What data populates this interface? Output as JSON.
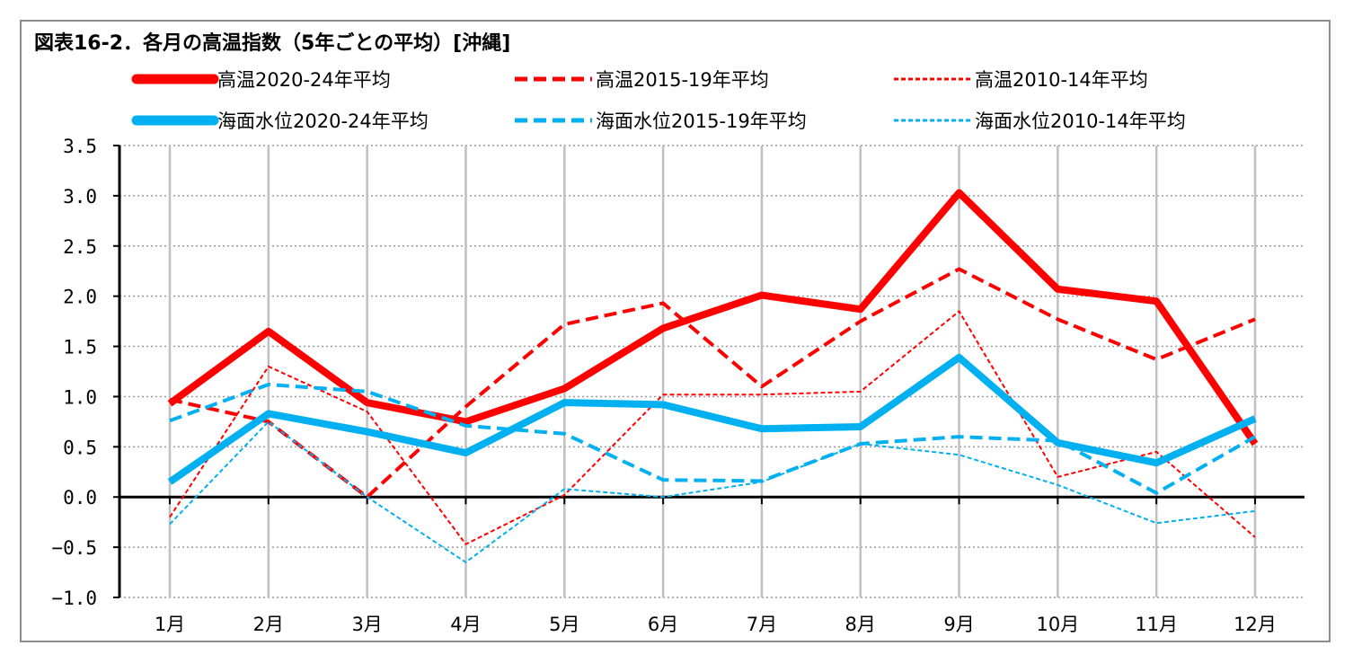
{
  "chart_data": {
    "type": "line",
    "title": "図表16-2．各月の高温指数（5年ごとの平均）[沖縄]",
    "categories": [
      "1月",
      "2月",
      "3月",
      "4月",
      "5月",
      "6月",
      "7月",
      "8月",
      "9月",
      "10月",
      "11月",
      "12月"
    ],
    "ylim": [
      -1.0,
      3.5
    ],
    "yticks": [
      "3.5",
      "3.0",
      "2.5",
      "2.0",
      "1.5",
      "1.0",
      "0.5",
      "0.0",
      "−0.5",
      "−1.0"
    ],
    "grid": true,
    "legend_position": "top",
    "series": [
      {
        "name": "高温2020-24年平均",
        "color": "#ff0000",
        "style": "solid-thick",
        "values": [
          0.93,
          1.65,
          0.94,
          0.75,
          1.08,
          1.68,
          2.01,
          1.87,
          3.03,
          2.07,
          1.95,
          0.53
        ]
      },
      {
        "name": "高温2015-19年平均",
        "color": "#ff0000",
        "style": "dash-medium",
        "values": [
          0.97,
          0.75,
          0.0,
          0.9,
          1.72,
          1.93,
          1.1,
          1.75,
          2.27,
          1.77,
          1.37,
          1.77
        ]
      },
      {
        "name": "高温2010-14年平均",
        "color": "#ff0000",
        "style": "dash-thin",
        "values": [
          -0.2,
          1.3,
          0.85,
          -0.47,
          0.02,
          1.02,
          1.02,
          1.05,
          1.85,
          0.2,
          0.45,
          -0.4
        ]
      },
      {
        "name": "海面水位2020-24年平均",
        "color": "#00b0f0",
        "style": "solid-thick",
        "values": [
          0.15,
          0.83,
          0.65,
          0.44,
          0.94,
          0.92,
          0.68,
          0.7,
          1.39,
          0.54,
          0.34,
          0.78
        ]
      },
      {
        "name": "海面水位2015-19年平均",
        "color": "#00b0f0",
        "style": "dash-medium",
        "values": [
          0.76,
          1.12,
          1.05,
          0.71,
          0.63,
          0.17,
          0.16,
          0.53,
          0.6,
          0.56,
          0.04,
          0.6
        ]
      },
      {
        "name": "海面水位2010-14年平均",
        "color": "#00b0f0",
        "style": "dash-thin",
        "values": [
          -0.27,
          0.75,
          0.0,
          -0.65,
          0.08,
          0.0,
          0.15,
          0.53,
          0.42,
          0.12,
          -0.26,
          -0.14
        ]
      }
    ]
  }
}
